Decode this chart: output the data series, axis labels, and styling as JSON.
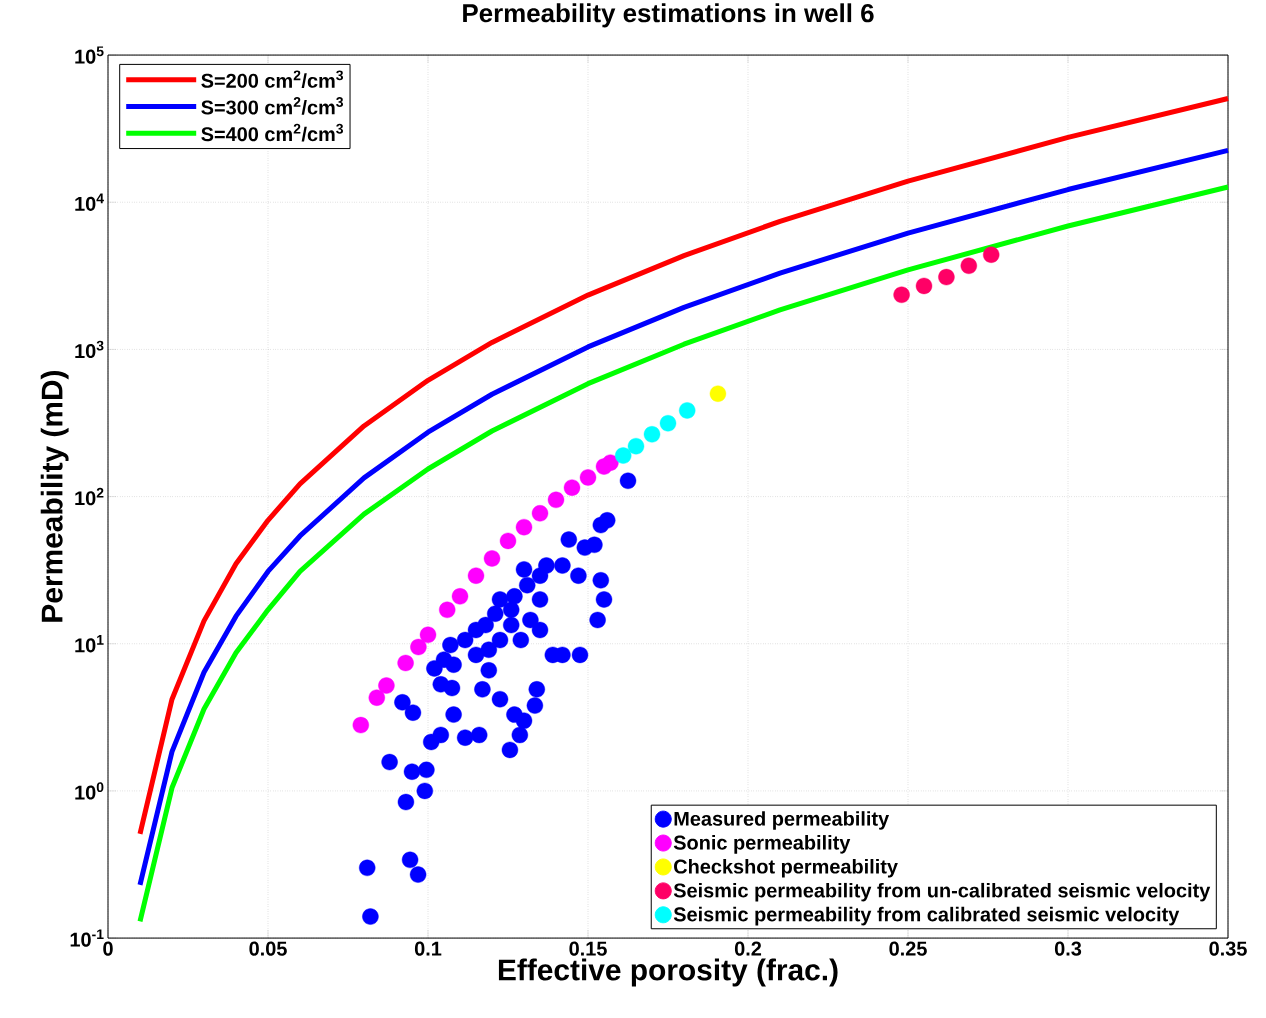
{
  "chart_data": {
    "type": "line",
    "title": "Permeability estimations in well 6",
    "xlabel": "Effective porosity (frac.)",
    "ylabel": "Permeability (mD)",
    "xlim": [
      0,
      0.35
    ],
    "xticks": [
      0,
      0.05,
      0.1,
      0.15,
      0.2,
      0.25,
      0.3,
      0.35
    ],
    "ylim": [
      0.1,
      100000
    ],
    "yticks": [
      {
        "value": 0.1,
        "label": "10$^{-1}$"
      },
      {
        "value": 1,
        "label": "10$^{0}$"
      },
      {
        "value": 10,
        "label": "10$^{1}$"
      },
      {
        "value": 100,
        "label": "10$^{2}$"
      },
      {
        "value": 1000,
        "label": "10$^{3}$"
      },
      {
        "value": 10000,
        "label": "10$^{4}$"
      },
      {
        "value": 100000,
        "label": "10$^{5}$"
      }
    ],
    "log": "y",
    "grid": true,
    "legend": "bottom right",
    "marker": "none",
    "line_style": "solid",
    "series": [
      {
        "name": "S=200 cm$^{2}$/cm$^{3}$",
        "color": "#ff0000",
        "x": [
          0.01,
          0.02,
          0.03,
          0.04,
          0.05,
          0.06,
          0.08,
          0.1,
          0.12,
          0.15,
          0.18,
          0.21,
          0.25,
          0.3,
          0.35
        ],
        "values": [
          0.51,
          4.2,
          14.3,
          35,
          69,
          122,
          302,
          617,
          1116,
          2340,
          4340,
          7420,
          13900,
          27600,
          50700
        ]
      },
      {
        "name": "S=300 cm$^{2}$/cm$^{3}$",
        "color": "#0000ff",
        "x": [
          0.01,
          0.02,
          0.03,
          0.04,
          0.05,
          0.06,
          0.08,
          0.1,
          0.12,
          0.15,
          0.18,
          0.21,
          0.25,
          0.3,
          0.35
        ],
        "values": [
          0.23,
          1.85,
          6.4,
          15.4,
          31,
          54,
          134,
          274,
          496,
          1040,
          1930,
          3300,
          6170,
          12200,
          22500
        ]
      },
      {
        "name": "S=400 cm$^{2}$/cm$^{3}$",
        "color": "#00ff00",
        "x": [
          0.01,
          0.02,
          0.03,
          0.04,
          0.05,
          0.06,
          0.08,
          0.1,
          0.12,
          0.15,
          0.18,
          0.21,
          0.25,
          0.3,
          0.35
        ],
        "values": [
          0.13,
          1.05,
          3.6,
          8.7,
          17,
          31,
          76,
          154,
          279,
          585,
          1085,
          1855,
          3470,
          6900,
          12700
        ]
      },
      {
        "name": "Measured permeability",
        "type": "scatter",
        "marker": "circle",
        "color": "#0000ff",
        "x": [
          0.1625,
          0.154,
          0.156,
          0.152,
          0.149,
          0.144,
          0.147,
          0.142,
          0.137,
          0.135,
          0.13,
          0.131,
          0.127,
          0.1225,
          0.126,
          0.121,
          0.118,
          0.115,
          0.1116,
          0.107,
          0.105,
          0.102,
          0.104,
          0.108,
          0.115,
          0.119,
          0.129,
          0.135,
          0.139,
          0.142,
          0.1475,
          0.154,
          0.155,
          0.153,
          0.135,
          0.132,
          0.126,
          0.1225,
          0.119,
          0.117,
          0.1225,
          0.127,
          0.13,
          0.1334,
          0.134,
          0.1287,
          0.1256,
          0.116,
          0.1116,
          0.108,
          0.1075,
          0.092,
          0.0953,
          0.088,
          0.095,
          0.0931,
          0.101,
          0.104,
          0.0995,
          0.099,
          0.0944,
          0.0969,
          0.081,
          0.082
        ],
        "values": [
          128,
          64,
          69,
          47,
          45,
          51,
          29,
          34,
          34,
          29,
          32,
          25,
          21,
          20,
          17,
          16,
          13.4,
          12.4,
          10.6,
          9.8,
          7.8,
          6.8,
          5.3,
          7.2,
          8.4,
          9.1,
          10.6,
          12.4,
          8.4,
          8.4,
          8.4,
          27,
          20,
          14.5,
          20,
          14.5,
          13.4,
          10.6,
          6.6,
          4.9,
          4.2,
          3.3,
          3.0,
          3.8,
          4.9,
          2.4,
          1.9,
          2.4,
          2.3,
          3.3,
          5.0,
          4.0,
          3.4,
          1.57,
          1.35,
          0.84,
          2.15,
          2.4,
          1.39,
          1.0,
          0.34,
          0.27,
          0.3,
          0.14
        ]
      },
      {
        "name": "Sonic permeability",
        "type": "scatter",
        "marker": "circle",
        "color": "#ff00ff",
        "x": [
          0.079,
          0.084,
          0.087,
          0.093,
          0.097,
          0.1,
          0.106,
          0.11,
          0.115,
          0.12,
          0.125,
          0.13,
          0.135,
          0.14,
          0.145,
          0.15,
          0.155,
          0.157
        ],
        "values": [
          2.8,
          4.3,
          5.2,
          7.4,
          9.5,
          11.5,
          17,
          21,
          29,
          38,
          50,
          62,
          77,
          95,
          115,
          135,
          160,
          170
        ]
      },
      {
        "name": "Checkshot permeability",
        "type": "scatter",
        "marker": "circle",
        "color": "#ffff00",
        "x": [
          0.1906
        ],
        "values": [
          500
        ]
      },
      {
        "name": "Seismic permeability from un-calibrated seismic velocity",
        "type": "scatter",
        "marker": "circle",
        "color": "#ff0066",
        "x": [
          0.248,
          0.255,
          0.262,
          0.269,
          0.276
        ],
        "values": [
          2350,
          2700,
          3100,
          3700,
          4400
        ]
      },
      {
        "name": "Seismic permeability from calibrated seismic velocity",
        "type": "scatter",
        "marker": "circle",
        "color": "#00ffff",
        "x": [
          0.161,
          0.165,
          0.17,
          0.175,
          0.181
        ],
        "values": [
          190,
          220,
          265,
          315,
          385
        ]
      }
    ]
  }
}
